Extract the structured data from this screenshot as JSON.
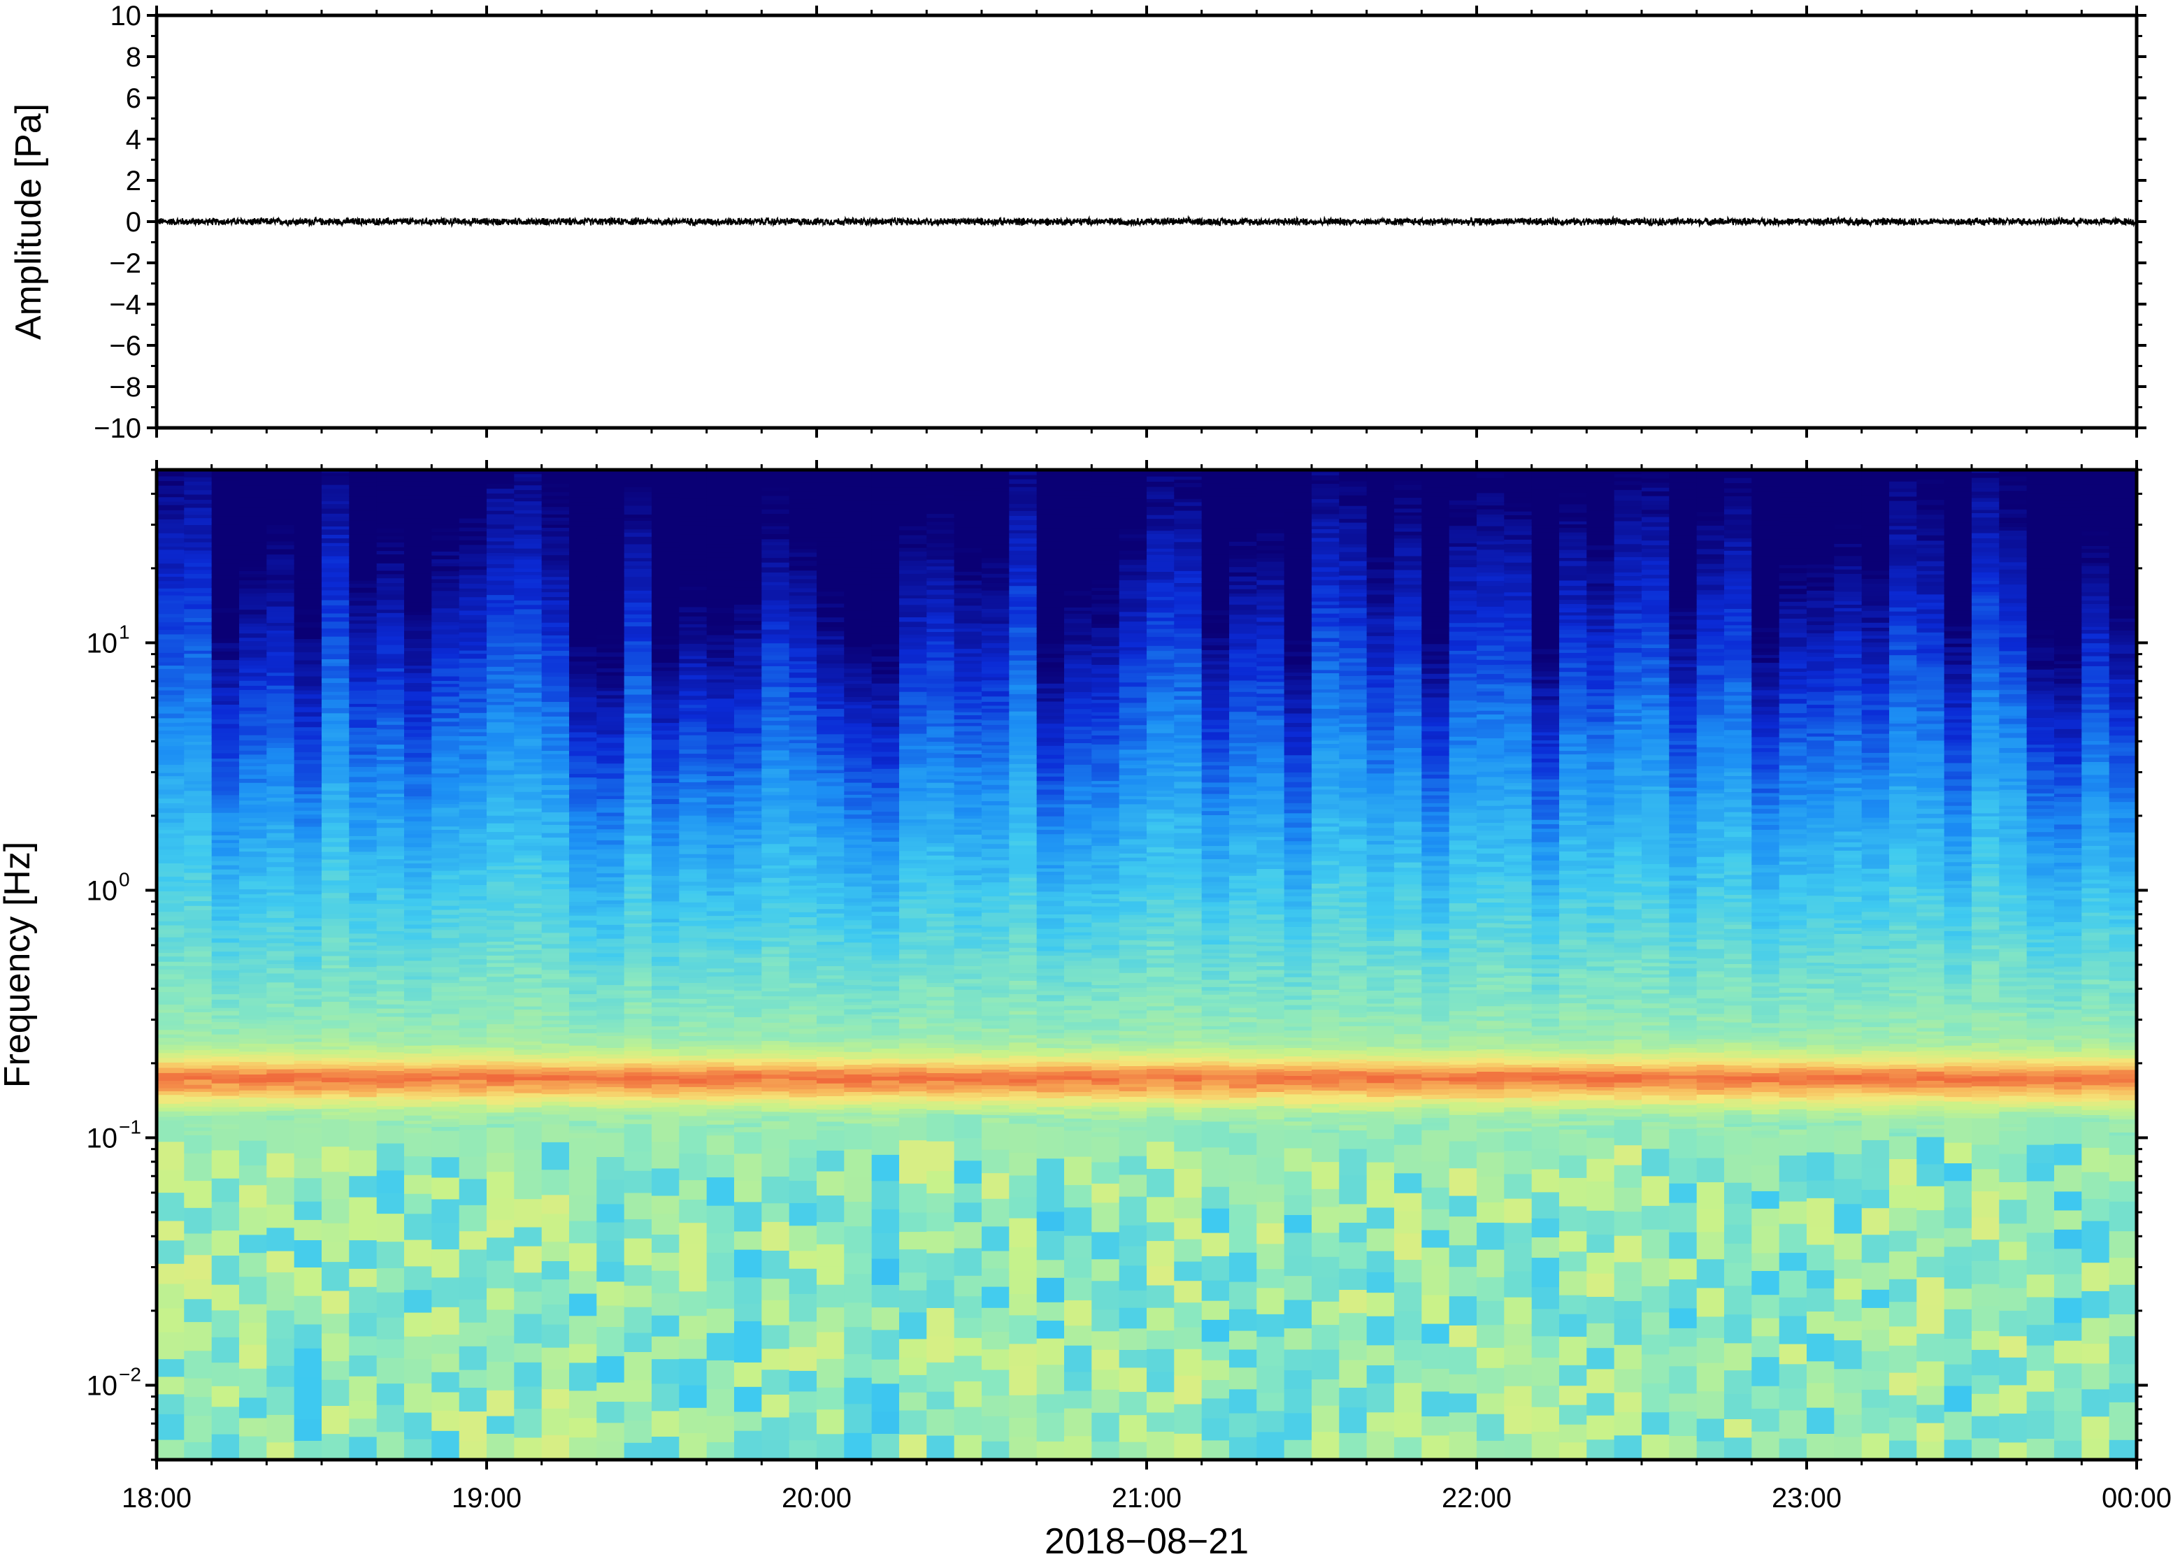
{
  "chart_data": [
    {
      "type": "line",
      "ylabel": "Amplitude [Pa]",
      "ylim": [
        -10,
        10
      ],
      "yticks": [
        "10",
        "8",
        "6",
        "4",
        "2",
        "0",
        "−2",
        "−4",
        "−6",
        "−8",
        "−10"
      ],
      "ytick_values": [
        10,
        8,
        6,
        4,
        2,
        0,
        -2,
        -4,
        -6,
        -8,
        -10
      ],
      "xlim": [
        "2018-08-21 18:00",
        "2018-08-22 00:00"
      ],
      "series": [
        {
          "values_description_note": "",
          "noise_amplitude_pa": 0.15,
          "mean_pa": 0
        }
      ],
      "line_color": "#000000",
      "grid": false
    },
    {
      "type": "heatmap",
      "ylabel": "Frequency [Hz]",
      "yscale": "log",
      "ylim": [
        0.005,
        50
      ],
      "ytick_values": [
        10,
        1,
        0.1,
        0.01
      ],
      "yticks": [
        {
          "base": "10",
          "exp": "1"
        },
        {
          "base": "10",
          "exp": "0"
        },
        {
          "base": "10",
          "exp": "−1"
        },
        {
          "base": "10",
          "exp": "−2"
        }
      ],
      "xlabel": "2018−08−21",
      "xticks": [
        "18:00",
        "19:00",
        "20:00",
        "21:00",
        "22:00",
        "23:00",
        "00:00"
      ],
      "xtick_hours": [
        18,
        19,
        20,
        21,
        22,
        23,
        24
      ],
      "microbarom_peak_hz": 0.17,
      "colormap": [
        "#0a0075",
        "#0b2bd6",
        "#1c8ff4",
        "#3fcaf0",
        "#8ae8c0",
        "#c8f28a",
        "#f5e77a",
        "#f8b55a",
        "#f06a3c"
      ],
      "grid": false
    }
  ]
}
